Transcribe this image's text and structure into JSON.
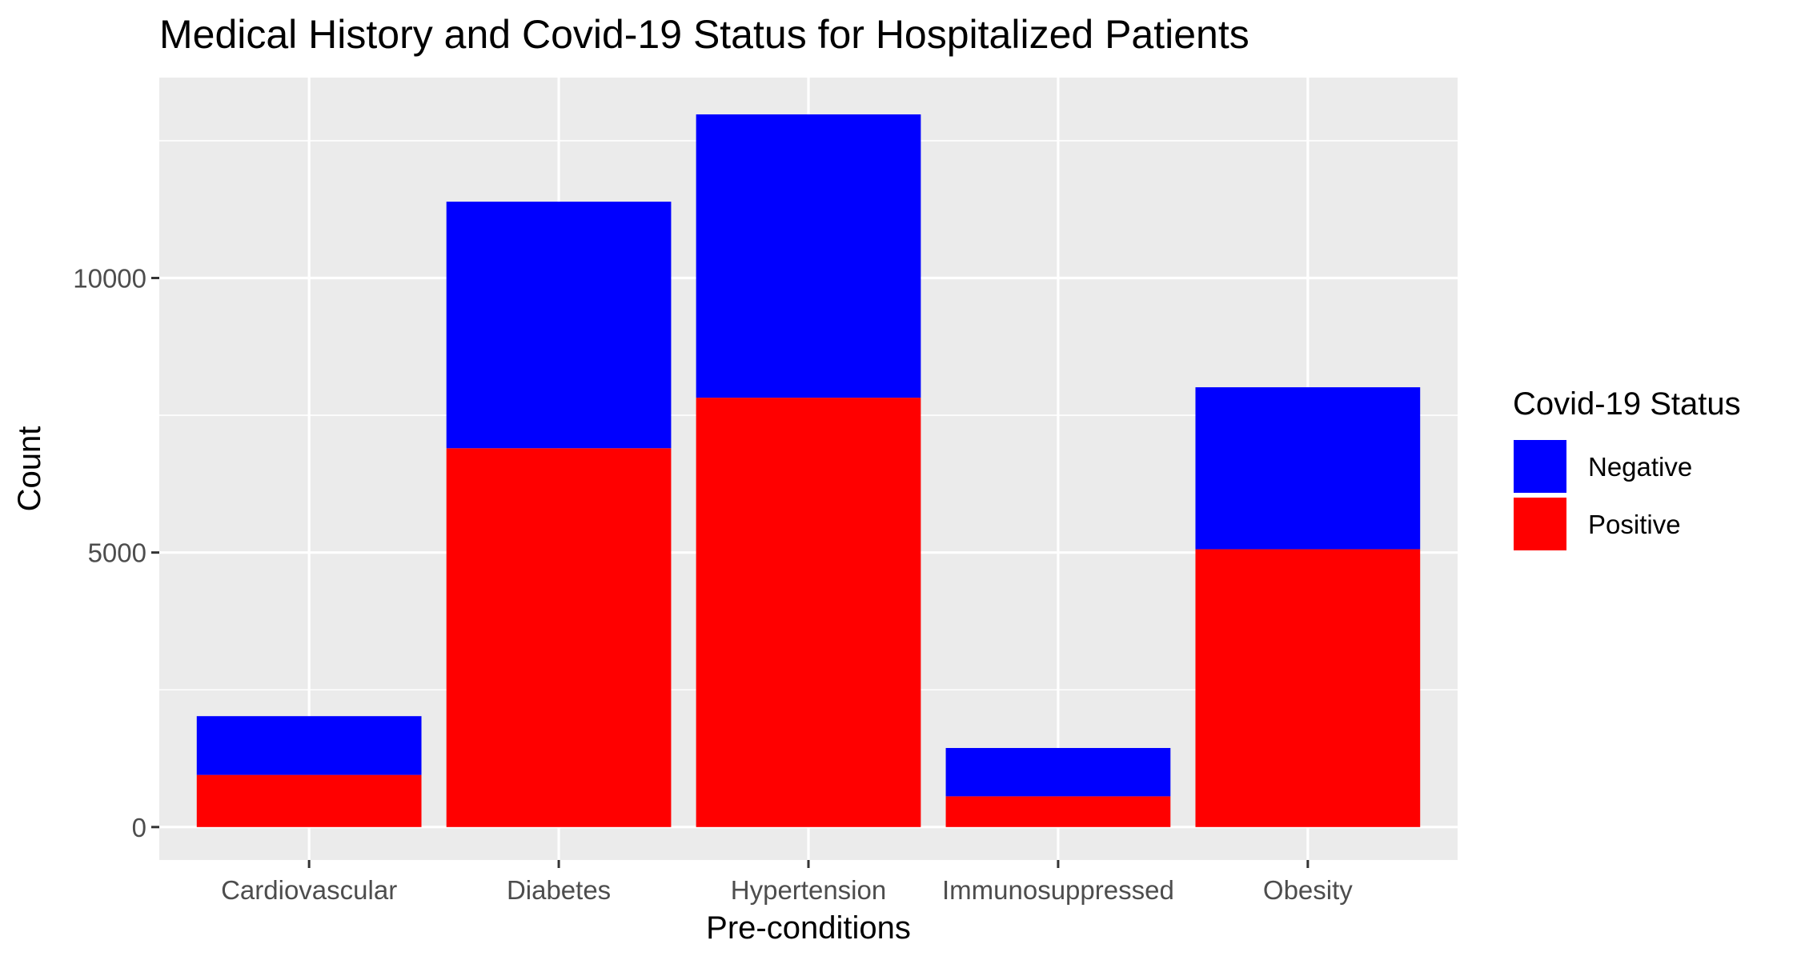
{
  "chart_data": {
    "type": "bar",
    "stacked": true,
    "title": "Medical History and Covid-19 Status for Hospitalized Patients",
    "xlabel": "Pre-conditions",
    "ylabel": "Count",
    "categories": [
      "Cardiovascular",
      "Diabetes",
      "Hypertension",
      "Immunosuppressed",
      "Obesity"
    ],
    "series": [
      {
        "name": "Positive",
        "color": "#ff0000",
        "values": [
          950,
          6900,
          7820,
          560,
          5060
        ]
      },
      {
        "name": "Negative",
        "color": "#0000ff",
        "values": [
          1070,
          4490,
          5160,
          880,
          2950
        ]
      }
    ],
    "ylim": [
      -600,
      13650
    ],
    "yticks": [
      0,
      5000,
      10000
    ],
    "ytick_labels": [
      "0",
      "5000",
      "10000"
    ],
    "grid": true,
    "panel_background": "#ebebeb",
    "legend": {
      "title": "Covid-19 Status",
      "position": "right",
      "entries": [
        {
          "label": "Negative",
          "color": "#0000ff"
        },
        {
          "label": "Positive",
          "color": "#ff0000"
        }
      ]
    }
  }
}
